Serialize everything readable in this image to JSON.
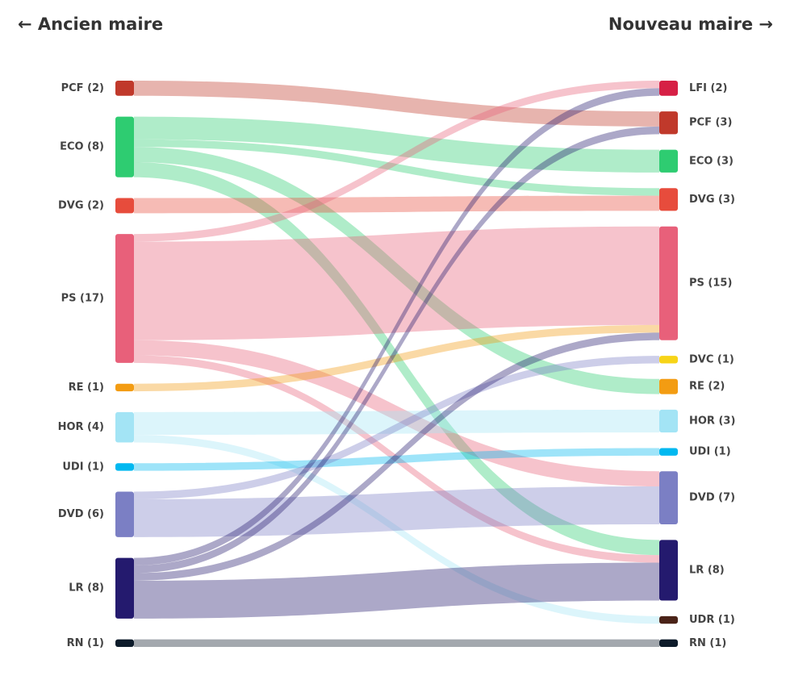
{
  "chart_data": {
    "type": "sankey",
    "left_title": "← Ancien maire",
    "right_title": "Nouveau maire →",
    "nodes_left": [
      {
        "label": "PCF (2)",
        "value": 2,
        "color": "#c0392b"
      },
      {
        "label": "ECO (8)",
        "value": 8,
        "color": "#2ecc71"
      },
      {
        "label": "DVG (2)",
        "value": 2,
        "color": "#e74c3c"
      },
      {
        "label": "PS (17)",
        "value": 17,
        "color": "#e8607a"
      },
      {
        "label": "RE (1)",
        "value": 1,
        "color": "#f39c12"
      },
      {
        "label": "HOR (4)",
        "value": 4,
        "color": "#a3e4f5"
      },
      {
        "label": "UDI (1)",
        "value": 1,
        "color": "#00b8f0"
      },
      {
        "label": "DVD (6)",
        "value": 6,
        "color": "#7b7fc4"
      },
      {
        "label": "LR (8)",
        "value": 8,
        "color": "#241a6e"
      },
      {
        "label": "RN (1)",
        "value": 1,
        "color": "#0d1b2a"
      }
    ],
    "nodes_right": [
      {
        "label": "LFI (2)",
        "value": 2,
        "color": "#d62045"
      },
      {
        "label": "PCF (3)",
        "value": 3,
        "color": "#c0392b"
      },
      {
        "label": "ECO (3)",
        "value": 3,
        "color": "#2ecc71"
      },
      {
        "label": "DVG (3)",
        "value": 3,
        "color": "#e74c3c"
      },
      {
        "label": "PS (15)",
        "value": 15,
        "color": "#e8607a"
      },
      {
        "label": "DVC (1)",
        "value": 1,
        "color": "#f7d417"
      },
      {
        "label": "RE (2)",
        "value": 2,
        "color": "#f39c12"
      },
      {
        "label": "HOR (3)",
        "value": 3,
        "color": "#a3e4f5"
      },
      {
        "label": "UDI (1)",
        "value": 1,
        "color": "#00b8f0"
      },
      {
        "label": "DVD (7)",
        "value": 7,
        "color": "#7b7fc4"
      },
      {
        "label": "LR (8)",
        "value": 8,
        "color": "#241a6e"
      },
      {
        "label": "UDR (1)",
        "value": 1,
        "color": "#4a2318"
      },
      {
        "label": "RN (1)",
        "value": 1,
        "color": "#0d1b2a"
      }
    ],
    "links": [
      {
        "source": 0,
        "target": 1,
        "value": 2
      },
      {
        "source": 1,
        "target": 2,
        "value": 3
      },
      {
        "source": 1,
        "target": 3,
        "value": 1
      },
      {
        "source": 1,
        "target": 6,
        "value": 2
      },
      {
        "source": 1,
        "target": 10,
        "value": 2
      },
      {
        "source": 2,
        "target": 3,
        "value": 2
      },
      {
        "source": 3,
        "target": 0,
        "value": 1
      },
      {
        "source": 3,
        "target": 4,
        "value": 13
      },
      {
        "source": 3,
        "target": 9,
        "value": 2
      },
      {
        "source": 3,
        "target": 10,
        "value": 1
      },
      {
        "source": 4,
        "target": 4,
        "value": 1
      },
      {
        "source": 5,
        "target": 7,
        "value": 3
      },
      {
        "source": 5,
        "target": 11,
        "value": 1
      },
      {
        "source": 6,
        "target": 8,
        "value": 1
      },
      {
        "source": 7,
        "target": 5,
        "value": 1
      },
      {
        "source": 7,
        "target": 9,
        "value": 5
      },
      {
        "source": 8,
        "target": 0,
        "value": 1
      },
      {
        "source": 8,
        "target": 1,
        "value": 1
      },
      {
        "source": 8,
        "target": 4,
        "value": 1
      },
      {
        "source": 8,
        "target": 10,
        "value": 5
      },
      {
        "source": 9,
        "target": 12,
        "value": 1
      }
    ]
  }
}
